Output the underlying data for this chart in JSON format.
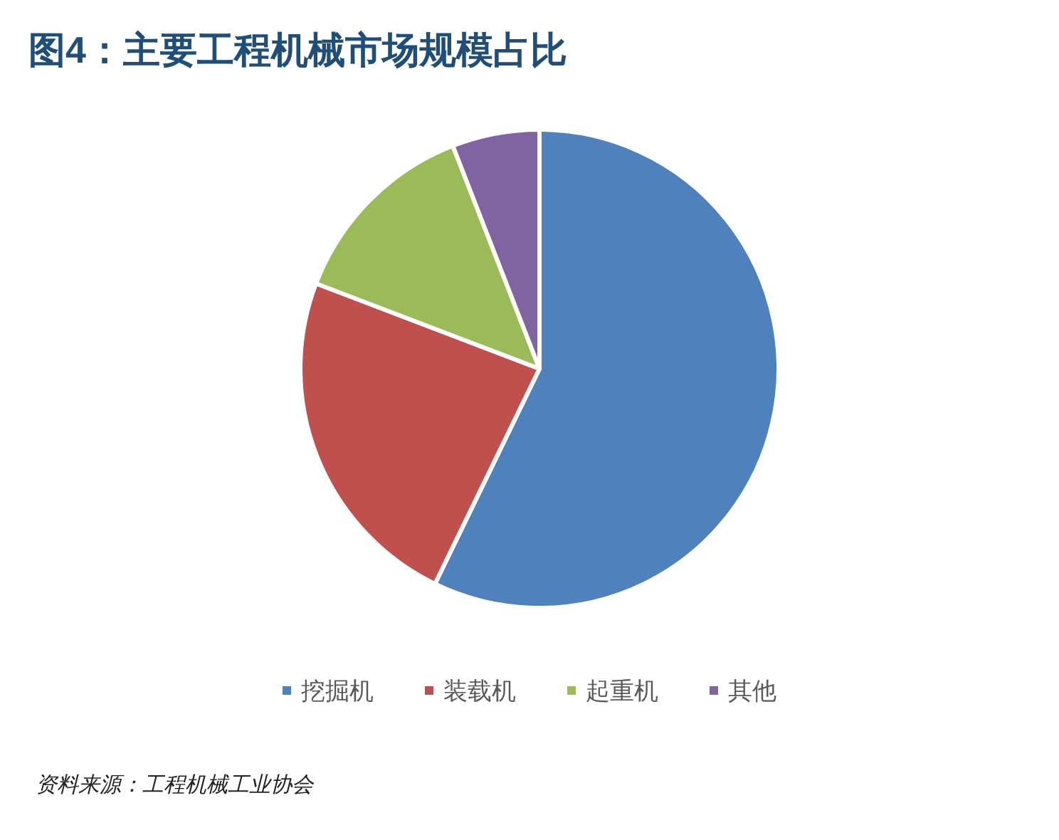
{
  "chart_data": {
    "type": "pie",
    "title": "图4：主要工程机械市场规模占比",
    "categories": [
      "挖掘机",
      "装载机",
      "起重机",
      "其他"
    ],
    "values": [
      57.2,
      23.6,
      13.3,
      5.9
    ],
    "colors": [
      "#4f81bd",
      "#c0504d",
      "#9bbb59",
      "#8064a2"
    ],
    "legend": "bottom",
    "annotations": [
      "资料来源：工程机械工业协会"
    ]
  }
}
